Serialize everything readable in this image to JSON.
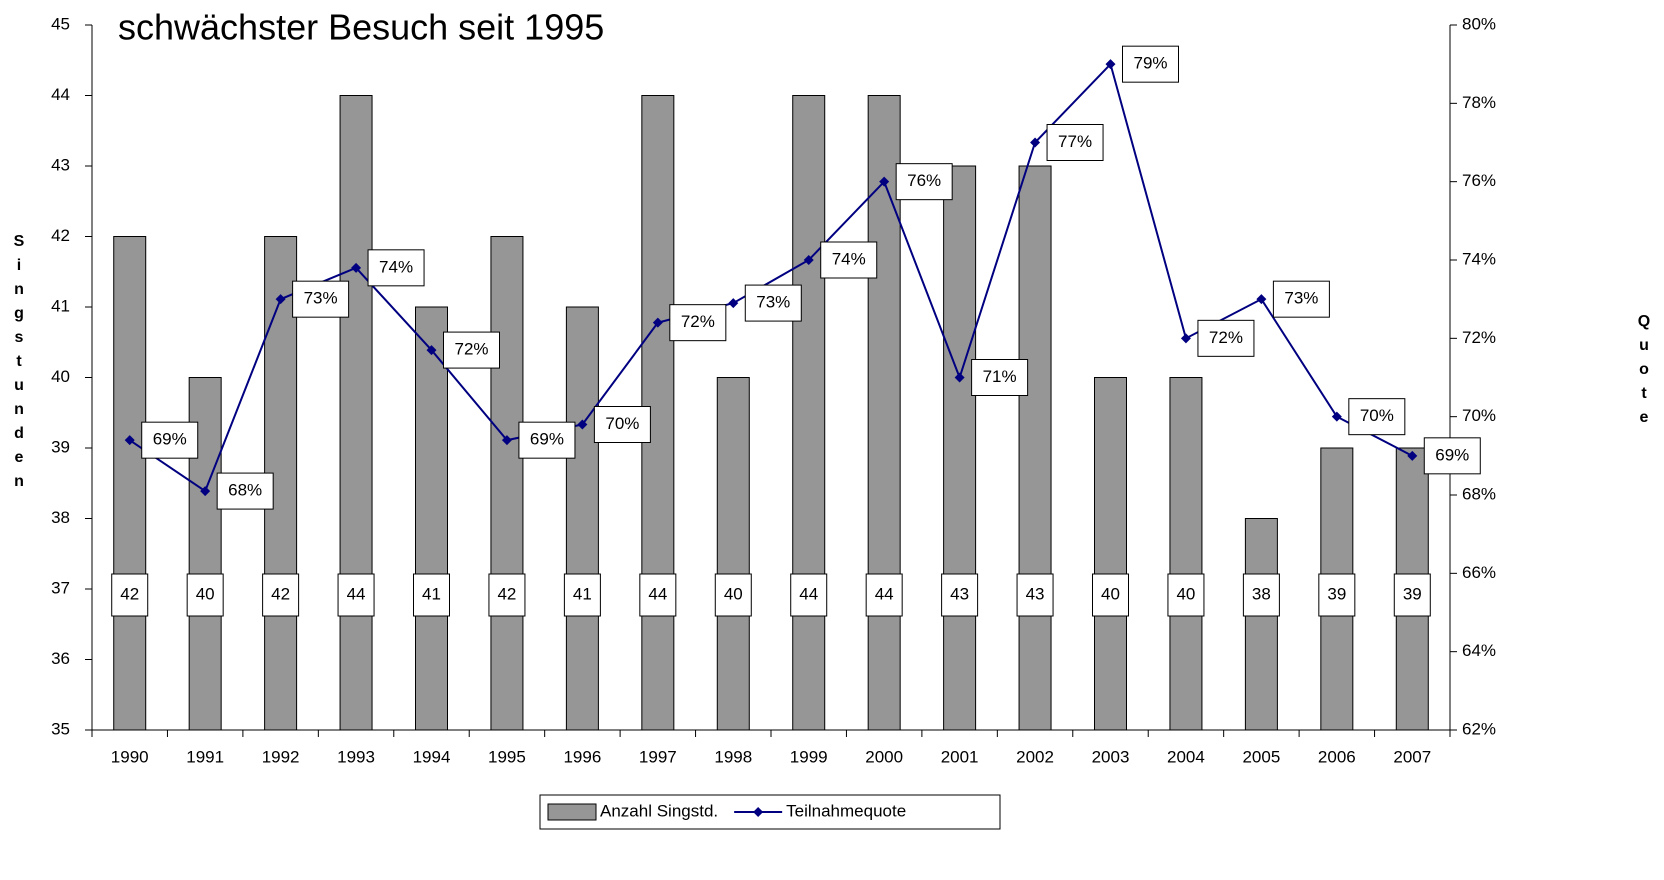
{
  "chart_data": {
    "type": "bar-line",
    "title": "schwächster Besuch seit 1995",
    "y_label": "Singstunden",
    "y2_label": "Quote",
    "categories": [
      "1990",
      "1991",
      "1992",
      "1993",
      "1994",
      "1995",
      "1996",
      "1997",
      "1998",
      "1999",
      "2000",
      "2001",
      "2002",
      "2003",
      "2004",
      "2005",
      "2006",
      "2007"
    ],
    "ylim": [
      35,
      45
    ],
    "yticks": [
      35,
      36,
      37,
      38,
      39,
      40,
      41,
      42,
      43,
      44,
      45
    ],
    "y2lim": [
      62,
      80
    ],
    "y2ticks": [
      {
        "value": 62,
        "label": "62%"
      },
      {
        "value": 64,
        "label": "64%"
      },
      {
        "value": 66,
        "label": "66%"
      },
      {
        "value": 68,
        "label": "68%"
      },
      {
        "value": 70,
        "label": "70%"
      },
      {
        "value": 72,
        "label": "72%"
      },
      {
        "value": 74,
        "label": "74%"
      },
      {
        "value": 76,
        "label": "76%"
      },
      {
        "value": 78,
        "label": "78%"
      },
      {
        "value": 80,
        "label": "80%"
      }
    ],
    "series": [
      {
        "name": "Anzahl Singstd.",
        "type": "bar",
        "color": "#969696",
        "values": [
          42,
          40,
          42,
          44,
          41,
          42,
          41,
          44,
          40,
          44,
          44,
          43,
          43,
          40,
          40,
          38,
          39,
          39
        ]
      },
      {
        "name": "Teilnahmequote",
        "type": "line",
        "axis": "y2",
        "color": "#000080",
        "values": [
          69.4,
          68.1,
          73.0,
          73.8,
          71.7,
          69.4,
          69.8,
          72.4,
          72.9,
          74.0,
          76.0,
          71.0,
          77.0,
          79.0,
          72.0,
          73.0,
          70.0,
          69.0
        ],
        "value_labels": [
          "69%",
          "68%",
          "73%",
          "74%",
          "72%",
          "69%",
          "70%",
          "72%",
          "73%",
          "74%",
          "76%",
          "71%",
          "77%",
          "79%",
          "72%",
          "73%",
          "70%",
          "69%"
        ]
      }
    ]
  }
}
